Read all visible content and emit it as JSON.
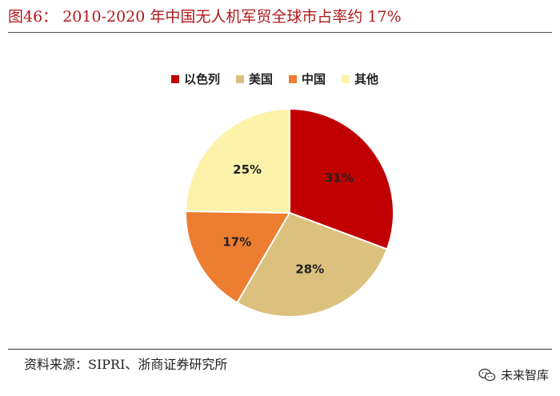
{
  "title": "图46： 2010-2020 年中国无人机军贸全球市占率约 17%",
  "source": "资料来源：SIPRI、浙商证券研究所",
  "watermark": {
    "text": "未来智库",
    "icon": "wechat-icon"
  },
  "chart_data": {
    "type": "pie",
    "legend_position": "top",
    "slices": [
      {
        "label": "以色列",
        "value": 31,
        "display": "31%",
        "color": "#c00000"
      },
      {
        "label": "美国",
        "value": 28,
        "display": "28%",
        "color": "#dcc07e"
      },
      {
        "label": "中国",
        "value": 17,
        "display": "17%",
        "color": "#ed7d31"
      },
      {
        "label": "其他",
        "value": 25,
        "display": "25%",
        "color": "#fdf2a9"
      }
    ]
  }
}
